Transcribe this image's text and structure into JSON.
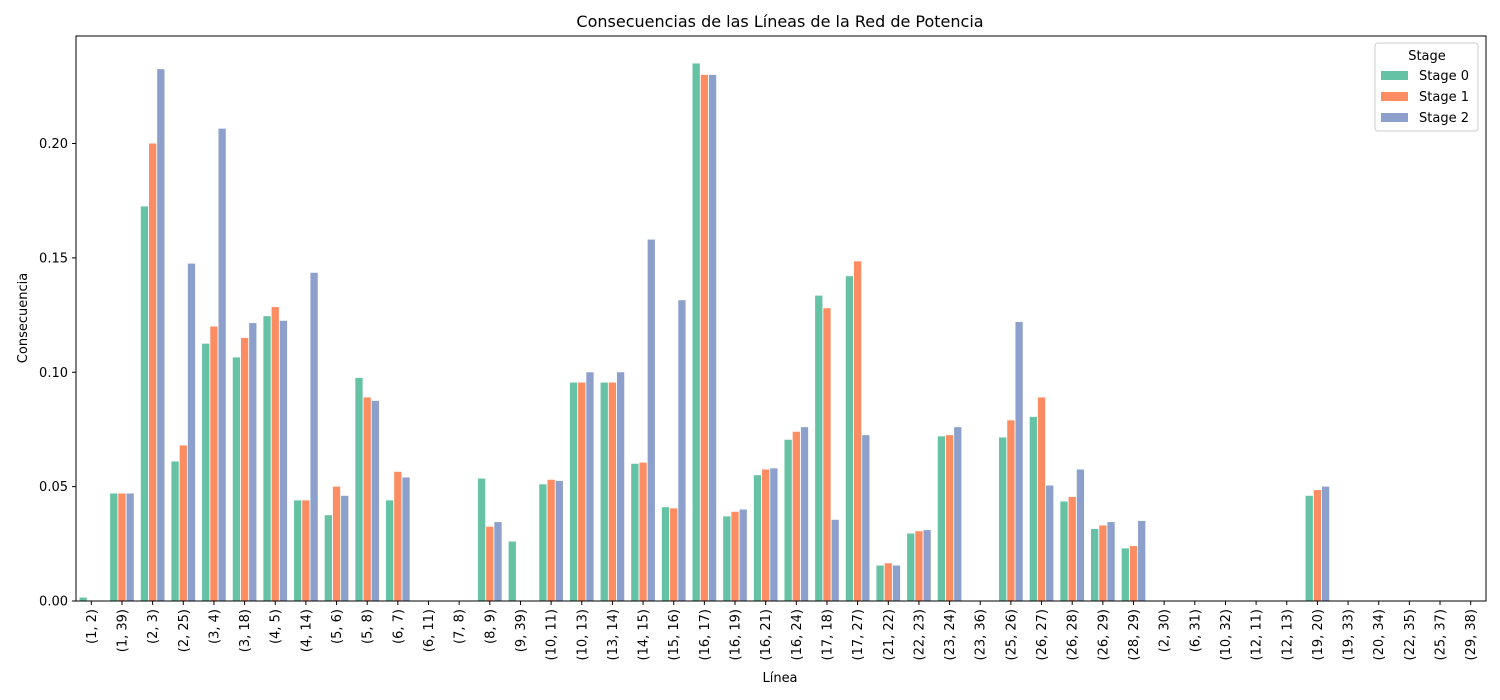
{
  "chart_data": {
    "type": "bar",
    "title": "Consecuencias de las Líneas de la Red de Potencia",
    "xlabel": "Línea",
    "ylabel": "Consecuencia",
    "ylim": [
      0,
      0.247
    ],
    "yticks": [
      "0.00",
      "0.05",
      "0.10",
      "0.15",
      "0.20"
    ],
    "ytick_values": [
      0,
      0.05,
      0.1,
      0.15,
      0.2
    ],
    "grid": false,
    "legend": {
      "title": "Stage",
      "position": "top-right"
    },
    "categories": [
      "(1, 2)",
      "(1, 39)",
      "(2, 3)",
      "(2, 25)",
      "(3, 4)",
      "(3, 18)",
      "(4, 5)",
      "(4, 14)",
      "(5, 6)",
      "(5, 8)",
      "(6, 7)",
      "(6, 11)",
      "(7, 8)",
      "(8, 9)",
      "(9, 39)",
      "(10, 11)",
      "(10, 13)",
      "(13, 14)",
      "(14, 15)",
      "(15, 16)",
      "(16, 17)",
      "(16, 19)",
      "(16, 21)",
      "(16, 24)",
      "(17, 18)",
      "(17, 27)",
      "(21, 22)",
      "(22, 23)",
      "(23, 24)",
      "(23, 36)",
      "(25, 26)",
      "(26, 27)",
      "(26, 28)",
      "(26, 29)",
      "(28, 29)",
      "(2, 30)",
      "(6, 31)",
      "(10, 32)",
      "(12, 11)",
      "(12, 13)",
      "(19, 20)",
      "(19, 33)",
      "(20, 34)",
      "(22, 35)",
      "(25, 37)",
      "(29, 38)"
    ],
    "series": [
      {
        "name": "Stage 0",
        "color": "#66c2a5",
        "values": [
          0.0015,
          0.047,
          0.1725,
          0.061,
          0.1125,
          0.1065,
          0.1245,
          0.044,
          0.0375,
          0.0975,
          0.044,
          0,
          0,
          0.0535,
          0.026,
          0.051,
          0.0955,
          0.0955,
          0.06,
          0.041,
          0.235,
          0.037,
          0.055,
          0.0705,
          0.1335,
          0.142,
          0.0155,
          0.0295,
          0.072,
          0,
          0.0715,
          0.0805,
          0.0435,
          0.0315,
          0.023,
          0,
          0,
          0,
          0,
          0,
          0.046,
          0,
          0,
          0,
          0,
          0
        ]
      },
      {
        "name": "Stage 1",
        "color": "#fc8d62",
        "values": [
          0,
          0.047,
          0.2,
          0.068,
          0.12,
          0.115,
          0.1285,
          0.044,
          0.05,
          0.089,
          0.0565,
          0,
          0,
          0.0325,
          0,
          0.053,
          0.0955,
          0.0955,
          0.0605,
          0.0405,
          0.23,
          0.039,
          0.0575,
          0.074,
          0.128,
          0.1485,
          0.0165,
          0.0305,
          0.0725,
          0,
          0.079,
          0.089,
          0.0455,
          0.033,
          0.024,
          0,
          0,
          0,
          0,
          0,
          0.0485,
          0,
          0,
          0,
          0,
          0
        ]
      },
      {
        "name": "Stage 2",
        "color": "#8da0cb",
        "values": [
          0,
          0.047,
          0.2325,
          0.1475,
          0.2065,
          0.1215,
          0.1225,
          0.1435,
          0.046,
          0.0875,
          0.054,
          0,
          0,
          0.0345,
          0,
          0.0525,
          0.1,
          0.1,
          0.158,
          0.1315,
          0.23,
          0.04,
          0.058,
          0.076,
          0.0355,
          0.0725,
          0.0155,
          0.031,
          0.076,
          0,
          0.122,
          0.0505,
          0.0575,
          0.0345,
          0.035,
          0,
          0,
          0,
          0,
          0,
          0.05,
          0,
          0,
          0,
          0,
          0
        ]
      }
    ]
  }
}
